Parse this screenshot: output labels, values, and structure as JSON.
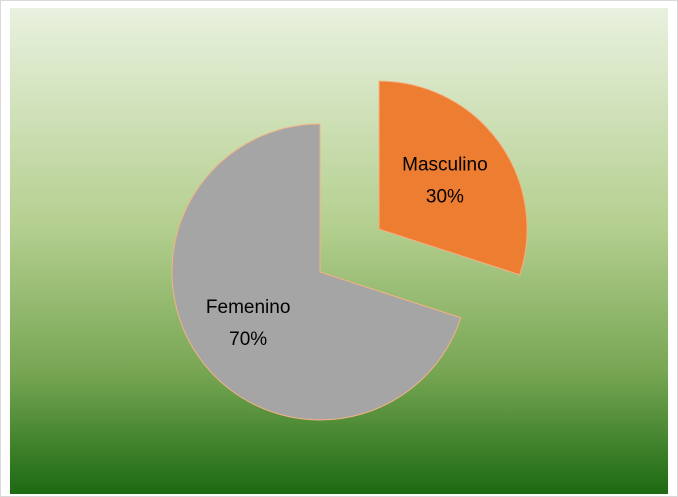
{
  "chart_data": {
    "type": "pie",
    "categories": [
      "Masculino",
      "Femenino"
    ],
    "values": [
      30,
      70
    ],
    "value_labels": [
      "30%",
      "70%"
    ],
    "colors": [
      "#ED7D31",
      "#A5A5A5"
    ]
  }
}
